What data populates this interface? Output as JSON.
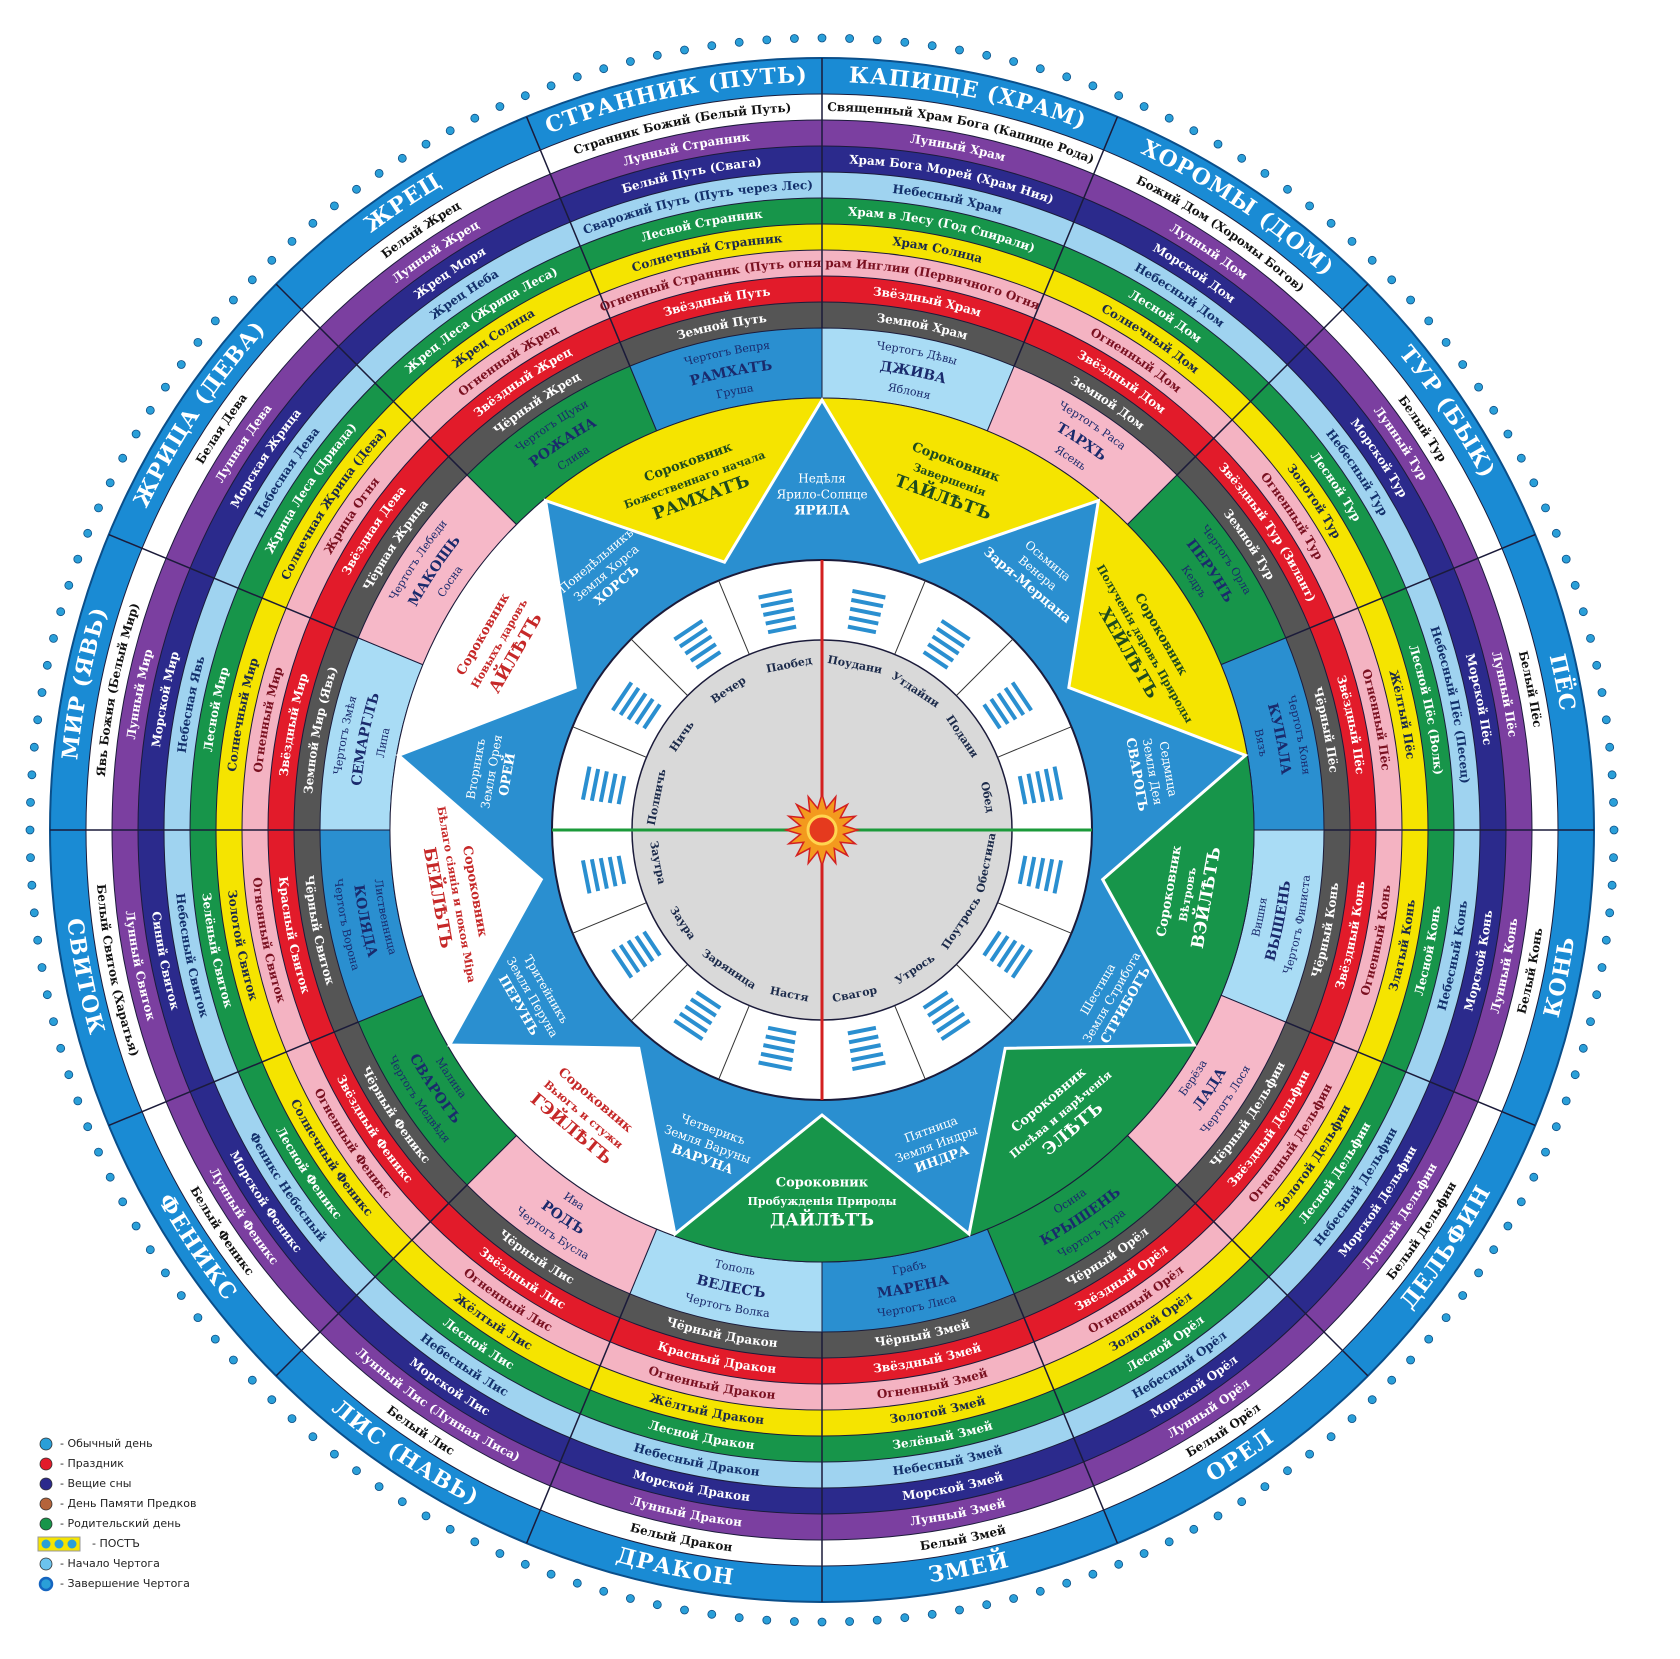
{
  "houses": [
    {
      "name": "КАПИЩЕ (ХРАМ)",
      "years": [
        "Священный Храм Бога (Капище Рода)",
        "Лунный Храм",
        "Храм Бога Морей (Храм Ния)",
        "Небесный Храм",
        "Храм в Лесу (Год Спирали)",
        "Храм Солнца",
        "Храм Инглии (Первичного Огня)",
        "Звёздный Храм",
        "Земной Храм"
      ]
    },
    {
      "name": "ХОРОМЫ (ДОМ)",
      "years": [
        "Божий Дом (Хоромы Богов)",
        "Лунный Дом",
        "Морской Дом",
        "Небесный Дом",
        "Лесной Дом",
        "Солнечный Дом",
        "Огненный Дом",
        "Звёздный Дом",
        "Земной Дом"
      ]
    },
    {
      "name": "ТУР (БЫК)",
      "years": [
        "Белый Тур",
        "Лунный Тур",
        "Морской Тур",
        "Небесный Тур",
        "Лесной Тур",
        "Золотой Тур",
        "Огненный Тур",
        "Звёздный Тур (Зилант)",
        "Земной Тур"
      ]
    },
    {
      "name": "ПЁС",
      "years": [
        "Белый Пёс",
        "Лунный Пёс",
        "Морской Пёс",
        "Небесный Пёс (Песец)",
        "Лесной Пёс (Волк)",
        "Жёлтый Пёс",
        "Огненный Пёс",
        "Звёздный Пёс",
        "Чёрный Пёс"
      ]
    },
    {
      "name": "КОНЬ",
      "years": [
        "Белый Конь",
        "Лунный Конь",
        "Морской Конь",
        "Небесный Конь",
        "Лесной Конь",
        "Златый Конь",
        "Огненный Конь",
        "Звёздный Конь",
        "Чёрный Конь"
      ]
    },
    {
      "name": "ДЕЛЬФИН",
      "years": [
        "Белый Дельфин",
        "Лунный Дельфин",
        "Морской Дельфин",
        "Небесный Дельфин",
        "Лесной Дельфин",
        "Золотой Дельфин",
        "Огненный Дельфин",
        "Звёздный Дельфин",
        "Чёрный Дельфин"
      ]
    },
    {
      "name": "ОРЕЛ",
      "years": [
        "Белый Орёл",
        "Лунный Орёл",
        "Морской Орёл",
        "Небесный Орёл",
        "Лесной Орёл",
        "Золотой Орёл",
        "Огненный Орёл",
        "Звёздный Орёл",
        "Чёрный Орёл"
      ]
    },
    {
      "name": "ЗМЕЙ",
      "years": [
        "Белый Змей",
        "Лунный Змей",
        "Морской Змей",
        "Небесный Змей",
        "Зелёный Змей",
        "Золотой Змей",
        "Огненный Змей",
        "Звёздный Змей",
        "Чёрный Змей"
      ]
    },
    {
      "name": "ДРАКОН",
      "years": [
        "Белый Дракон",
        "Лунный Дракон",
        "Морской Дракон",
        "Небесный Дракон",
        "Лесной Дракон",
        "Жёлтый Дракон",
        "Огненный Дракон",
        "Красный Дракон",
        "Чёрный Дракон"
      ]
    },
    {
      "name": "ЛИС (НАВЬ)",
      "years": [
        "Белый Лис",
        "Лунный Лис (Лунная Лиса)",
        "Морской Лис",
        "Небесный Лис",
        "Лесной Лис",
        "Жёлтый Лис",
        "Огненный Лис",
        "Звёздный Лис",
        "Чёрный Лис"
      ]
    },
    {
      "name": "ФЕНИКС",
      "years": [
        "Белый Феникс",
        "Лунный Феникс",
        "Морской Феникс",
        "Феникс Небесный",
        "Лесной Феникс",
        "Солнечный Феникс",
        "Огненный Феникс",
        "Звёздный Феникс",
        "Чёрный Феникс"
      ]
    },
    {
      "name": "СВИТОК",
      "years": [
        "Белый Свиток (Харатья)",
        "Лунный Свиток",
        "Синий Свиток",
        "Небесный Свиток",
        "Зелёный Свиток",
        "Золотой Свиток",
        "Огненный Свиток",
        "Красный Свиток",
        "Чёрный Свиток"
      ]
    },
    {
      "name": "МИР (ЯВЬ)",
      "years": [
        "Явь Божия (Белый Мир)",
        "Лунный Мир",
        "Морской Мир",
        "Небесная Явь",
        "Лесной Мир",
        "Солнечный Мир",
        "Огненный Мир",
        "Звёздный Мир",
        "Земной Мир (Явь)"
      ]
    },
    {
      "name": "ЖРИЦА (ДЕВА)",
      "years": [
        "Белая Дева",
        "Лунная Дева",
        "Морская Жрица",
        "Небесная Дева",
        "Жрица Леса (Дриада)",
        "Солнечная Жрица (Дева)",
        "Жрица Огня",
        "Звёздная Дева",
        "Чёрная Жрица"
      ]
    },
    {
      "name": "ЖРЕЦ",
      "years": [
        "Белый Жрец",
        "Лунный Жрец",
        "Жрец Моря",
        "Жрец Неба",
        "Жрец Леса (Жрица Леса)",
        "Жрец Солнца",
        "Огненный Жрец",
        "Звёздный Жрец",
        "Чёрный Жрец"
      ]
    },
    {
      "name": "СТРАННИК (ПУТЬ)",
      "years": [
        "Странник Божий (Белый Путь)",
        "Лунный Странник",
        "Белый Путь (Свага)",
        "Сварожий Путь (Путь через Лес)",
        "Лесной Странник",
        "Солнечный Странник",
        "Огненный Странник (Путь огня)",
        "Звёздный Путь",
        "Земной Путь"
      ]
    }
  ],
  "chertogs": [
    {
      "name": "Чертогъ Дѣвы",
      "god": "ДЖИВА",
      "tree": "Яблоня",
      "color": "#a9dcf5"
    },
    {
      "name": "Чертогъ Раса",
      "god": "ТАРХЪ",
      "tree": "Ясень",
      "color": "#f6b8c8"
    },
    {
      "name": "Чертогъ Орла",
      "god": "ПЕРУНЪ",
      "tree": "Кедръ",
      "color": "#17954a"
    },
    {
      "name": "Чертогъ Коня",
      "god": "КУПАЛА",
      "tree": "Вязъ",
      "color": "#2a8fd0"
    },
    {
      "name": "Чертогъ Финиста",
      "god": "ВЫШЕНЬ",
      "tree": "Вишня",
      "color": "#a9dcf5"
    },
    {
      "name": "Чертогъ Лося",
      "god": "ЛАДА",
      "tree": "Берёза",
      "color": "#f6b8c8"
    },
    {
      "name": "Чертогъ Тура",
      "god": "КРЫШЕНЬ",
      "tree": "Осина",
      "color": "#17954a"
    },
    {
      "name": "Чертогъ Лиса",
      "god": "МАРЕНА",
      "tree": "Грабъ",
      "color": "#2a8fd0"
    },
    {
      "name": "Чертогъ Волка",
      "god": "ВЕЛЕСЪ",
      "tree": "Тополь",
      "color": "#a9dcf5"
    },
    {
      "name": "Чертогъ Бусла",
      "god": "РОДЪ",
      "tree": "Ива",
      "color": "#f6b8c8"
    },
    {
      "name": "Чертогъ Медвѣдя",
      "god": "СВАРОГЪ",
      "tree": "Малина",
      "color": "#17954a"
    },
    {
      "name": "Чертогъ Ворона",
      "god": "КОЛЯДА",
      "tree": "Лиственница",
      "color": "#2a8fd0"
    },
    {
      "name": "Чертогъ Змѣя",
      "god": "СЕМАРГЛЪ",
      "tree": "Липа",
      "color": "#a9dcf5"
    },
    {
      "name": "Чертогъ Лебеди",
      "god": "МАКОШЬ",
      "tree": "Сосна",
      "color": "#f6b8c8"
    },
    {
      "name": "Чертогъ Щуки",
      "god": "РОЖАНА",
      "tree": "Слива",
      "color": "#17954a"
    },
    {
      "name": "Чертогъ Вепря",
      "god": "РАМХАТЪ",
      "tree": "Груша",
      "color": "#2a8fd0"
    }
  ],
  "days": [
    {
      "name": "Недѣля",
      "land": "Ярило-Солнце",
      "god": "ЯРИЛА"
    },
    {
      "name": "Осьмица",
      "land": "Венера",
      "god": "Заря-Мерцана"
    },
    {
      "name": "Седмица",
      "land": "Земля Дея",
      "god": "СВАРОГЪ"
    },
    {
      "name": "Шестица",
      "land": "Земля Стрибога",
      "god": "СТРИБОГЪ"
    },
    {
      "name": "Пятница",
      "land": "Земля Индры",
      "god": "ИНДРА"
    },
    {
      "name": "Четверикъ",
      "land": "Земля Варуны",
      "god": "ВАРУНА"
    },
    {
      "name": "Тритейникъ",
      "land": "Земля Перуна",
      "god": "ПЕРУНЪ"
    },
    {
      "name": "Вторникъ",
      "land": "Земля Орея",
      "god": "ОРЕЙ"
    },
    {
      "name": "Понедѣльникъ",
      "land": "Земля Хорса",
      "god": "ХОРСЪ"
    }
  ],
  "sorokovniks": [
    {
      "title": "Сороковник",
      "meaning": "Завершенія",
      "name": "ТАЙЛѢТЪ",
      "color": "#f5e400"
    },
    {
      "title": "Сороковник",
      "meaning": "Полученія даровъ Природы",
      "name": "ХЕЙЛѢТЪ",
      "color": "#f5e400"
    },
    {
      "title": "Сороковник",
      "meaning": "Вѣтровъ",
      "name": "ВЭЙЛѢТЪ",
      "color": "#17954a"
    },
    {
      "title": "Сороковник",
      "meaning": "Посѣва и нарѣченія",
      "name": "ЭЛѢТЪ",
      "color": "#17954a"
    },
    {
      "title": "Сороковник",
      "meaning": "Пробужденія Природы",
      "name": "ДАЙЛѢТЪ",
      "color": "#17954a"
    },
    {
      "title": "Сороковник",
      "meaning": "Вьюгъ и стужи",
      "name": "ГЭЙЛѢТЪ",
      "color": "#ffffff"
    },
    {
      "title": "Сороковник",
      "meaning": "Бѣлаго сіянія и покоя Міра",
      "name": "БЕЙЛѢТЪ",
      "color": "#ffffff"
    },
    {
      "title": "Сороковник",
      "meaning": "Новыхъ даровъ",
      "name": "АЙЛѢТЪ",
      "color": "#ffffff"
    },
    {
      "title": "Сороковник",
      "meaning": "Божественнаго начала",
      "name": "РАМХАТЪ",
      "color": "#f5e400"
    }
  ],
  "hours": [
    "Поудани",
    "Утдайни",
    "Подани",
    "Обед",
    "Обестина",
    "Поутрось",
    "Утрось",
    "Свагор",
    "Настя",
    "Заряница",
    "Заура",
    "Заутра",
    "Полничь",
    "Ничь",
    "Вечер",
    "Паобед"
  ],
  "legend": [
    {
      "label": "- Обычный день",
      "color": "#2a9fd8",
      "kind": "dot"
    },
    {
      "label": "- Праздник",
      "color": "#e21b2a",
      "kind": "dot"
    },
    {
      "label": "- Вещие сны",
      "color": "#2b2a8c",
      "kind": "dot"
    },
    {
      "label": "- День Памяти Предков",
      "color": "#b5643a",
      "kind": "dot"
    },
    {
      "label": "- Родительский день",
      "color": "#17954a",
      "kind": "dot"
    },
    {
      "label": "- ПОСТЪ",
      "color": "#f5e400",
      "kind": "fast"
    },
    {
      "label": "- Начало Чертога",
      "color": "#6cc3ee",
      "kind": "dot"
    },
    {
      "label": "- Завершение Чертога",
      "color": "#1565c0",
      "kind": "ring"
    }
  ]
}
